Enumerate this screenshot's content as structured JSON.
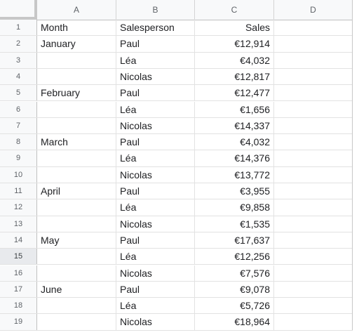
{
  "columns": [
    "A",
    "B",
    "C",
    "D"
  ],
  "rows": [
    {
      "n": "1",
      "a": "Month",
      "b": "Salesperson",
      "c": "Sales",
      "d": ""
    },
    {
      "n": "2",
      "a": "January",
      "b": "Paul",
      "c": "€12,914",
      "d": ""
    },
    {
      "n": "3",
      "a": "",
      "b": "Léa",
      "c": "€4,032",
      "d": ""
    },
    {
      "n": "4",
      "a": "",
      "b": "Nicolas",
      "c": "€12,817",
      "d": ""
    },
    {
      "n": "5",
      "a": "February",
      "b": "Paul",
      "c": "€12,477",
      "d": ""
    },
    {
      "n": "6",
      "a": "",
      "b": "Léa",
      "c": "€1,656",
      "d": ""
    },
    {
      "n": "7",
      "a": "",
      "b": "Nicolas",
      "c": "€14,337",
      "d": ""
    },
    {
      "n": "8",
      "a": "March",
      "b": "Paul",
      "c": "€4,032",
      "d": ""
    },
    {
      "n": "9",
      "a": "",
      "b": "Léa",
      "c": "€14,376",
      "d": ""
    },
    {
      "n": "10",
      "a": "",
      "b": "Nicolas",
      "c": "€13,772",
      "d": ""
    },
    {
      "n": "11",
      "a": "April",
      "b": "Paul",
      "c": "€3,955",
      "d": ""
    },
    {
      "n": "12",
      "a": "",
      "b": "Léa",
      "c": "€9,858",
      "d": ""
    },
    {
      "n": "13",
      "a": "",
      "b": "Nicolas",
      "c": "€1,535",
      "d": ""
    },
    {
      "n": "14",
      "a": "May",
      "b": "Paul",
      "c": "€17,637",
      "d": ""
    },
    {
      "n": "15",
      "a": "",
      "b": "Léa",
      "c": "€12,256",
      "d": ""
    },
    {
      "n": "16",
      "a": "",
      "b": "Nicolas",
      "c": "€7,576",
      "d": ""
    },
    {
      "n": "17",
      "a": "June",
      "b": "Paul",
      "c": "€9,078",
      "d": ""
    },
    {
      "n": "18",
      "a": "",
      "b": "Léa",
      "c": "€5,726",
      "d": ""
    },
    {
      "n": "19",
      "a": "",
      "b": "Nicolas",
      "c": "€18,964",
      "d": ""
    }
  ],
  "selected_row": "15"
}
